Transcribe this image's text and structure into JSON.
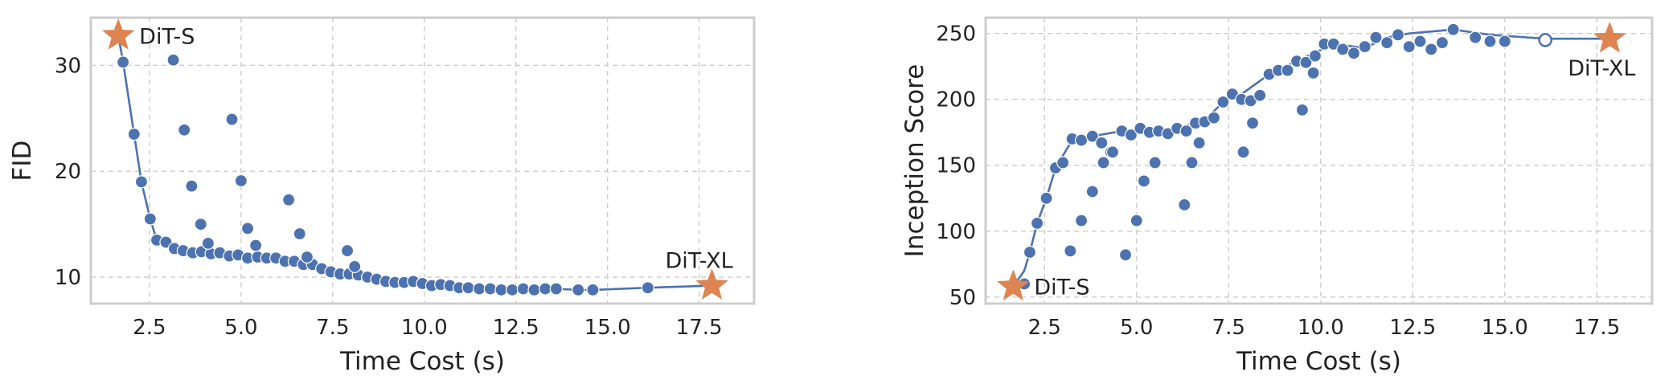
{
  "colors": {
    "point": "#4c72b0",
    "line": "#4c72b0",
    "star": "#dd8452",
    "grid": "#cccccc",
    "frame": "#cccccc"
  },
  "chart_data": [
    {
      "type": "scatter",
      "xlabel": "Time Cost (s)",
      "ylabel": "FID",
      "xlim": [
        0.9,
        19.0
      ],
      "ylim": [
        7.5,
        34.5
      ],
      "xticks": [
        2.5,
        5.0,
        7.5,
        10.0,
        12.5,
        15.0,
        17.5
      ],
      "yticks": [
        10,
        20,
        30
      ],
      "grid": true,
      "series": [
        {
          "kind": "points",
          "x": [
            1.78,
            2.08,
            2.28,
            2.52,
            2.7,
            2.95,
            3.18,
            3.42,
            3.68,
            3.92,
            4.18,
            4.42,
            4.68,
            4.92,
            5.18,
            5.45,
            5.7,
            5.95,
            6.2,
            6.45,
            6.7,
            6.95,
            7.2,
            7.45,
            7.7,
            7.95,
            8.2,
            8.45,
            8.7,
            8.95,
            9.2,
            9.45,
            9.7,
            9.95,
            10.2,
            10.45,
            10.7,
            10.95,
            11.2,
            11.5,
            11.8,
            12.1,
            12.4,
            12.7,
            13.0,
            13.3,
            13.6,
            14.2,
            14.6,
            16.1,
            3.15,
            3.45,
            3.65,
            3.9,
            4.1,
            4.75,
            5.0,
            5.18,
            5.4,
            6.3,
            6.6,
            6.8,
            7.9,
            8.1
          ],
          "y": [
            30.3,
            23.5,
            19.0,
            15.5,
            13.5,
            13.3,
            12.7,
            12.5,
            12.3,
            12.4,
            12.2,
            12.3,
            12.0,
            12.1,
            11.8,
            11.9,
            11.8,
            11.8,
            11.5,
            11.5,
            11.2,
            11.2,
            10.8,
            10.5,
            10.3,
            10.3,
            10.2,
            10.0,
            9.8,
            9.6,
            9.5,
            9.5,
            9.6,
            9.4,
            9.2,
            9.3,
            9.2,
            9.0,
            9.0,
            8.9,
            8.9,
            8.8,
            8.8,
            8.9,
            8.8,
            8.9,
            8.9,
            8.8,
            8.8,
            9.0,
            30.5,
            23.9,
            18.6,
            15.0,
            13.2,
            24.9,
            19.1,
            14.6,
            13.0,
            17.3,
            14.1,
            11.9,
            12.5,
            11.0
          ]
        },
        {
          "kind": "line",
          "x": [
            1.65,
            1.78,
            2.08,
            2.28,
            2.52,
            2.7,
            2.95,
            3.2,
            3.6,
            4.2,
            4.8,
            5.3,
            5.8,
            6.2,
            6.7,
            7.2,
            7.6,
            8.2,
            8.7,
            9.3,
            9.8,
            10.2,
            10.7,
            11.2,
            11.8,
            12.4,
            13.0,
            13.6,
            14.2,
            14.6,
            16.1,
            17.85
          ],
          "y": [
            32.8,
            30.3,
            23.5,
            19.0,
            15.5,
            13.5,
            13.3,
            12.5,
            12.2,
            12.1,
            11.8,
            11.6,
            11.6,
            11.3,
            11.2,
            10.8,
            10.2,
            10.1,
            9.8,
            9.6,
            9.5,
            9.3,
            9.1,
            8.9,
            8.9,
            8.8,
            8.8,
            8.9,
            8.8,
            8.8,
            9.0,
            9.2
          ]
        }
      ],
      "stars": [
        {
          "label": "DiT-S",
          "x": 1.65,
          "y": 32.8,
          "anchor": "right"
        },
        {
          "label": "DiT-XL",
          "x": 17.85,
          "y": 9.2,
          "anchor": "above"
        }
      ]
    },
    {
      "type": "scatter",
      "xlabel": "Time Cost (s)",
      "ylabel": "Inception Score",
      "xlim": [
        0.9,
        19.0
      ],
      "ylim": [
        45,
        262
      ],
      "xticks": [
        2.5,
        5.0,
        7.5,
        10.0,
        12.5,
        15.0,
        17.5
      ],
      "yticks": [
        50,
        100,
        150,
        200,
        250
      ],
      "grid": true,
      "series": [
        {
          "kind": "points",
          "x": [
            1.95,
            2.1,
            2.3,
            2.55,
            2.8,
            3.0,
            3.25,
            3.5,
            3.8,
            4.05,
            4.3,
            4.6,
            4.85,
            5.1,
            5.35,
            5.6,
            5.85,
            6.1,
            6.35,
            6.6,
            6.85,
            7.1,
            7.35,
            7.6,
            7.85,
            8.1,
            8.35,
            8.6,
            8.85,
            9.1,
            9.35,
            9.6,
            9.85,
            10.1,
            10.35,
            10.6,
            10.9,
            11.2,
            11.5,
            11.8,
            12.1,
            12.4,
            12.7,
            13.0,
            13.3,
            13.6,
            14.2,
            14.6,
            15.0,
            16.1,
            3.2,
            3.5,
            3.8,
            4.1,
            4.35,
            4.7,
            5.0,
            5.2,
            5.5,
            6.3,
            6.5,
            6.7,
            7.9,
            8.15,
            9.5,
            9.8
          ],
          "y": [
            60,
            84,
            106,
            125,
            148,
            152,
            170,
            169,
            172,
            167,
            160,
            176,
            173,
            178,
            175,
            176,
            174,
            178,
            176,
            182,
            183,
            186,
            198,
            204,
            200,
            199,
            203,
            219,
            222,
            222,
            229,
            228,
            233,
            242,
            242,
            238,
            235,
            240,
            247,
            243,
            249,
            240,
            244,
            238,
            243,
            253,
            247,
            244,
            244,
            245,
            85,
            108,
            130,
            152,
            160,
            82,
            108,
            138,
            152,
            120,
            152,
            167,
            160,
            182,
            192,
            220
          ],
          "hollow": [
            false,
            false,
            false,
            false,
            false,
            false,
            false,
            false,
            false,
            false,
            false,
            false,
            false,
            false,
            false,
            false,
            false,
            false,
            false,
            false,
            false,
            false,
            false,
            false,
            false,
            false,
            false,
            false,
            false,
            false,
            false,
            false,
            false,
            false,
            false,
            false,
            false,
            false,
            false,
            false,
            false,
            false,
            false,
            false,
            false,
            false,
            false,
            false,
            false,
            true,
            false,
            false,
            false,
            false,
            false,
            false,
            false,
            false,
            false,
            false,
            false,
            false,
            false,
            false,
            false,
            false
          ]
        },
        {
          "kind": "line",
          "x": [
            1.65,
            1.95,
            2.1,
            2.3,
            2.55,
            2.8,
            3.25,
            3.8,
            4.6,
            5.3,
            6.1,
            6.85,
            7.35,
            7.85,
            8.6,
            9.35,
            10.35,
            11.2,
            11.8,
            12.4,
            13.6,
            14.6,
            16.1,
            17.85
          ],
          "y": [
            58,
            70,
            84,
            106,
            125,
            148,
            169,
            172,
            176,
            176,
            178,
            184,
            198,
            204,
            219,
            229,
            242,
            239,
            247,
            250,
            253,
            249,
            246,
            246
          ]
        }
      ],
      "stars": [
        {
          "label": "DiT-S",
          "x": 1.65,
          "y": 58,
          "anchor": "right"
        },
        {
          "label": "DiT-XL",
          "x": 17.85,
          "y": 246,
          "anchor": "below"
        }
      ]
    }
  ]
}
